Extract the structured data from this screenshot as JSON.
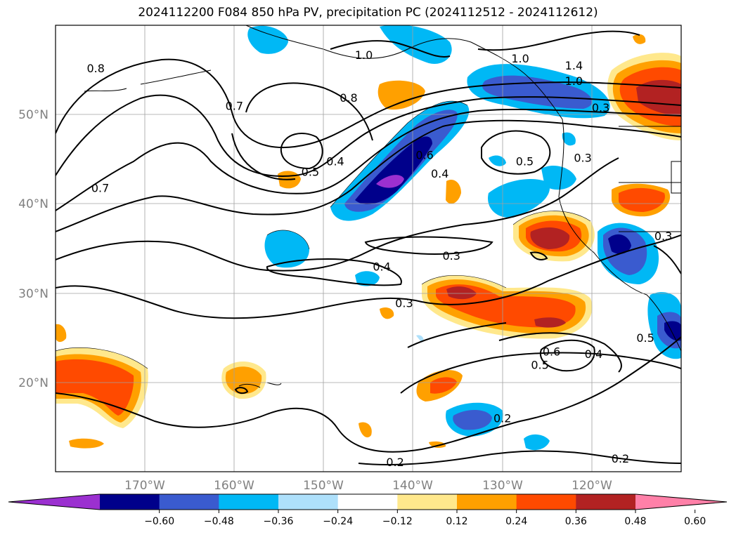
{
  "title": "2024112200 F084 850 hPa PV, precipitation PC (2024112512 - 2024112612)",
  "map": {
    "lon_labels": [
      "170°W",
      "160°W",
      "150°W",
      "140°W",
      "130°W",
      "120°W"
    ],
    "lat_labels": [
      "50°N",
      "40°N",
      "30°N",
      "20°N"
    ],
    "lon_range": [
      -180,
      -110
    ],
    "lat_range": [
      10,
      60
    ],
    "lon_ticks": [
      -170,
      -160,
      -150,
      -140,
      -130,
      -120
    ],
    "lat_ticks": [
      50,
      40,
      30,
      20
    ],
    "contour_labels": [
      {
        "text": "0.8",
        "lon": -175.5,
        "lat": 55.2
      },
      {
        "text": "1.0",
        "lon": -145.5,
        "lat": 56.7
      },
      {
        "text": "1.0",
        "lon": -128.0,
        "lat": 56.3
      },
      {
        "text": "1.4",
        "lon": -122.0,
        "lat": 55.5
      },
      {
        "text": "1.0",
        "lon": -122.0,
        "lat": 53.8
      },
      {
        "text": "0.8",
        "lon": -147.2,
        "lat": 51.9
      },
      {
        "text": "0.7",
        "lon": -160.0,
        "lat": 51.0
      },
      {
        "text": "0.3",
        "lon": -119.0,
        "lat": 50.8
      },
      {
        "text": "0.6",
        "lon": -138.7,
        "lat": 45.5
      },
      {
        "text": "0.5",
        "lon": -127.5,
        "lat": 44.8
      },
      {
        "text": "0.3",
        "lon": -121.0,
        "lat": 45.2
      },
      {
        "text": "0.4",
        "lon": -148.7,
        "lat": 44.8
      },
      {
        "text": "0.5",
        "lon": -151.5,
        "lat": 43.6
      },
      {
        "text": "0.4",
        "lon": -137.0,
        "lat": 43.4
      },
      {
        "text": "0.7",
        "lon": -175.0,
        "lat": 41.8
      },
      {
        "text": "0.3",
        "lon": -112.0,
        "lat": 36.4
      },
      {
        "text": "0.3",
        "lon": -135.7,
        "lat": 34.2
      },
      {
        "text": "0.4",
        "lon": -143.5,
        "lat": 33.0
      },
      {
        "text": "0.3",
        "lon": -141.0,
        "lat": 28.9
      },
      {
        "text": "0.6",
        "lon": -124.5,
        "lat": 23.5
      },
      {
        "text": "0.4",
        "lon": -119.8,
        "lat": 23.2
      },
      {
        "text": "0.5",
        "lon": -125.8,
        "lat": 22.0
      },
      {
        "text": "0.5",
        "lon": -114.0,
        "lat": 25.0
      },
      {
        "text": "0.2",
        "lon": -130.0,
        "lat": 16.0
      },
      {
        "text": "0.2",
        "lon": -142.0,
        "lat": 11.1
      },
      {
        "text": "0.2",
        "lon": -116.8,
        "lat": 11.5
      }
    ]
  },
  "colorbar": {
    "ticks": [
      "−0.60",
      "−0.48",
      "−0.36",
      "−0.24",
      "−0.12",
      "0.12",
      "0.24",
      "0.36",
      "0.48",
      "0.60"
    ],
    "colors": [
      "#9b30d0",
      "#00008b",
      "#3a5bcf",
      "#00b8f5",
      "#aee0fb",
      "#ffffff",
      "#ffe88c",
      "#ffa000",
      "#ff4a00",
      "#b22222",
      "#ff80a8"
    ]
  }
}
